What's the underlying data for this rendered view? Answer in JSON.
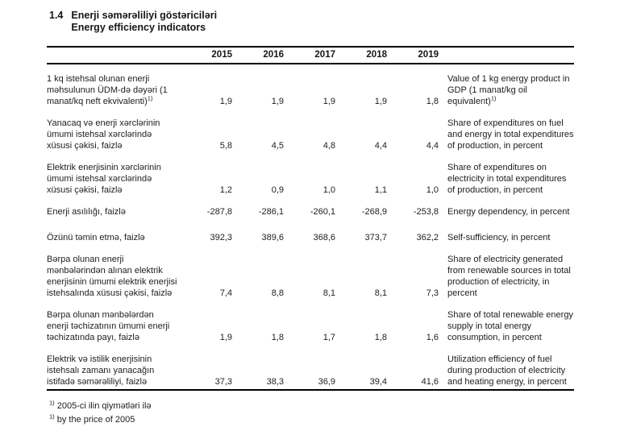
{
  "page": {
    "section_number": "1.4",
    "title_az": "Enerji səmərəliliyi göstəriciləri",
    "title_en": "Energy efficiency indicators"
  },
  "table": {
    "years": [
      "2015",
      "2016",
      "2017",
      "2018",
      "2019"
    ],
    "rows": [
      {
        "az": "1 kq istehsal olunan enerji məhsulunun ÜDM-də dəyəri (1 manat/kq neft ekvivalenti)",
        "az_sup": "1)",
        "en": "Value of 1 kg energy product in GDP (1 manat/kg oil equivalent)",
        "en_sup": "1)",
        "values": [
          "1,9",
          "1,9",
          "1,9",
          "1,9",
          "1,8"
        ]
      },
      {
        "az": "Yanacaq və enerji xərclərinin ümumi istehsal xərclərində xüsusi çəkisi, faizlə",
        "en": "Share of expenditures on fuel and energy in total expenditures of production, in percent",
        "values": [
          "5,8",
          "4,5",
          "4,8",
          "4,4",
          "4,4"
        ]
      },
      {
        "az": "Elektrik enerjisinin xərclərinin ümumi istehsal xərclərində xüsusi çəkisi, faizlə",
        "en": "Share of expenditures on electricity in total expenditures of production, in percent",
        "values": [
          "1,2",
          "0,9",
          "1,0",
          "1,1",
          "1,0"
        ]
      },
      {
        "az": "Enerji asılılığı, faizlə",
        "en": "Energy dependency, in percent",
        "values": [
          "-287,8",
          "-286,1",
          "-260,1",
          "-268,9",
          "-253,8"
        ]
      },
      {
        "az": "Özünü təmin etmə, faizlə",
        "en": "Self-sufficiency, in percent",
        "values": [
          "392,3",
          "389,6",
          "368,6",
          "373,7",
          "362,2"
        ]
      },
      {
        "az": "Bərpa olunan enerji mənbələrindən alınan elektrik enerjisinin ümumi elektrik enerjisi istehsalında xüsusi çəkisi, faizlə",
        "en": "Share of electricity generated from renewable sources in total production of electricity, in percent",
        "values": [
          "7,4",
          "8,8",
          "8,1",
          "8,1",
          "7,3"
        ]
      },
      {
        "az": "Bərpa olunan mənbələrdən enerji təchizatının ümumi enerji təchizatında payı, faizlə",
        "en": "Share of total renewable energy supply in total energy consumption, in percent",
        "values": [
          "1,9",
          "1,8",
          "1,7",
          "1,8",
          "1,6"
        ]
      },
      {
        "az": "Elektrik və istilik enerjisinin istehsalı zamanı yanacağın istifadə səmərəliliyi, faizlə",
        "en": "Utilization efficiency of fuel during production of electricity and heating energy, in percent",
        "values": [
          "37,3",
          "38,3",
          "36,9",
          "39,4",
          "41,6"
        ]
      }
    ]
  },
  "footnotes": [
    {
      "sup": "1)",
      "text": "2005-ci ilin qiymətləri ilə"
    },
    {
      "sup": "1)",
      "text": "by the price of 2005"
    }
  ]
}
